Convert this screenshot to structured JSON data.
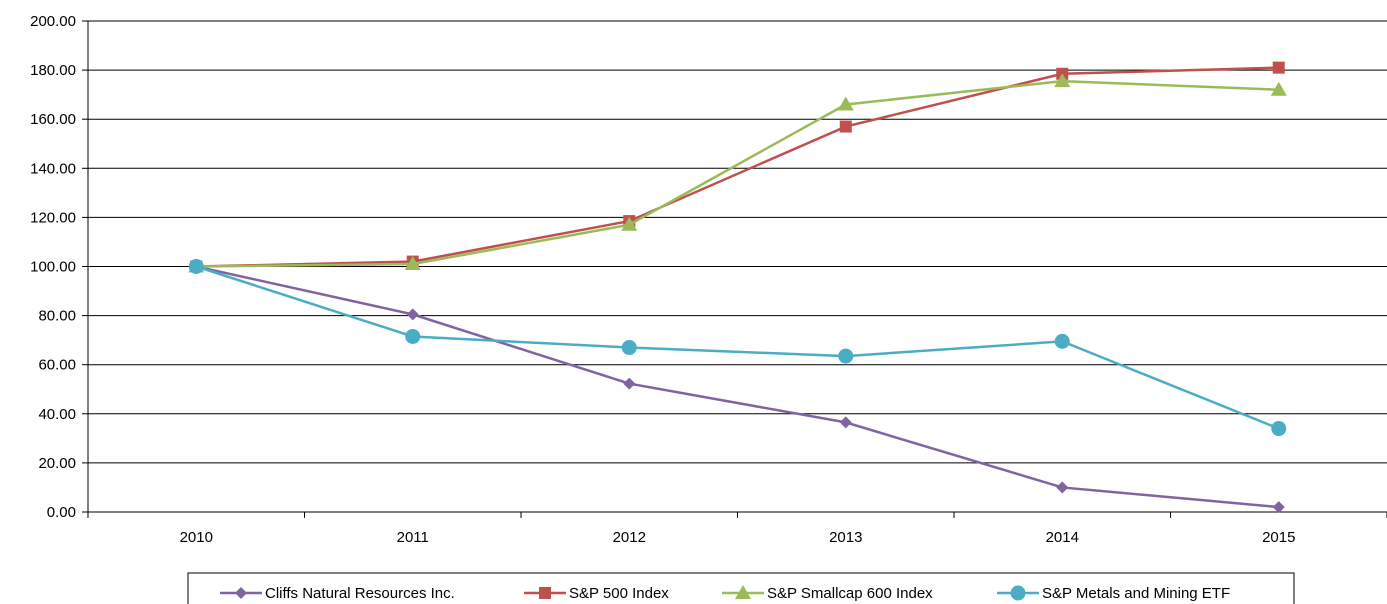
{
  "chart_data": {
    "type": "line",
    "title": "",
    "xlabel": "",
    "ylabel": "",
    "categories": [
      "2010",
      "2011",
      "2012",
      "2013",
      "2014",
      "2015"
    ],
    "ylim": [
      0,
      200
    ],
    "yticks": [
      "0.00",
      "20.00",
      "40.00",
      "60.00",
      "80.00",
      "100.00",
      "120.00",
      "140.00",
      "160.00",
      "180.00",
      "200.00"
    ],
    "grid": "horizontal",
    "legend_position": "bottom",
    "series": [
      {
        "name": "Cliffs Natural Resources Inc.",
        "color": "#8064a2",
        "marker": "diamond",
        "values": [
          100.0,
          80.5,
          52.3,
          36.5,
          10.0,
          2.0
        ]
      },
      {
        "name": "S&P 500 Index",
        "color": "#c0504d",
        "marker": "square",
        "values": [
          100.0,
          102.0,
          118.5,
          157.0,
          178.5,
          181.0
        ]
      },
      {
        "name": "S&P Smallcap 600 Index",
        "color": "#9bbb59",
        "marker": "triangle",
        "values": [
          100.0,
          101.0,
          117.0,
          166.0,
          175.5,
          172.0
        ]
      },
      {
        "name": "S&P Metals and Mining ETF",
        "color": "#4bacc6",
        "marker": "circle",
        "values": [
          100.0,
          71.5,
          67.0,
          63.5,
          69.5,
          34.0
        ]
      }
    ]
  }
}
